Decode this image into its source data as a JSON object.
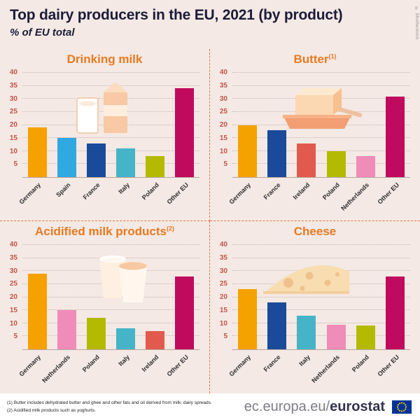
{
  "header": {
    "title": "Top dairy producers in the EU, 2021 (by product)",
    "subtitle": "% of EU total"
  },
  "credit": "© Shutterstock",
  "colors": {
    "Germany": "#f5a200",
    "Spain": "#2fa9e0",
    "France": "#1a4b9b",
    "Italy": "#46b4c8",
    "Poland": "#b4ba00",
    "Netherlands": "#f08cb8",
    "Ireland": "#e25a4e",
    "Other EU": "#c00a5e"
  },
  "chart_data": [
    {
      "type": "bar",
      "title": "Drinking milk",
      "title_sup": "",
      "icon": "milk-carton-and-glass",
      "categories": [
        "Germany",
        "Spain",
        "France",
        "Italy",
        "Poland",
        "Other EU"
      ],
      "values": [
        19,
        15,
        13,
        11,
        8,
        34
      ],
      "ylim": [
        0,
        40
      ],
      "yticks": [
        5,
        10,
        15,
        20,
        25,
        30,
        35,
        40
      ],
      "grid": "dotted horizontal",
      "legend": "none"
    },
    {
      "type": "bar",
      "title": "Butter",
      "title_sup": "(1)",
      "icon": "butter-dish-and-knife",
      "categories": [
        "Germany",
        "France",
        "Ireland",
        "Poland",
        "Netherlands",
        "Other EU"
      ],
      "values": [
        20,
        18,
        13,
        10,
        8,
        31
      ],
      "ylim": [
        0,
        40
      ],
      "yticks": [
        5,
        10,
        15,
        20,
        25,
        30,
        35,
        40
      ],
      "grid": "dotted horizontal",
      "legend": "none"
    },
    {
      "type": "bar",
      "title": "Acidified milk products",
      "title_sup": "(2)",
      "icon": "yogurt-cups",
      "categories": [
        "Germany",
        "Netherlands",
        "Poland",
        "Italy",
        "Ireland",
        "Other EU"
      ],
      "values": [
        29,
        15,
        12,
        8,
        7,
        28
      ],
      "ylim": [
        0,
        40
      ],
      "yticks": [
        5,
        10,
        15,
        20,
        25,
        30,
        35,
        40
      ],
      "grid": "dotted horizontal",
      "legend": "none"
    },
    {
      "type": "bar",
      "title": "Cheese",
      "title_sup": "",
      "icon": "cheese-wedge",
      "categories": [
        "Germany",
        "France",
        "Italy",
        "Netherlands",
        "Poland",
        "Other EU"
      ],
      "values": [
        23,
        18,
        13,
        9.5,
        9,
        28
      ],
      "ylim": [
        0,
        40
      ],
      "yticks": [
        5,
        10,
        15,
        20,
        25,
        30,
        35,
        40
      ],
      "grid": "dotted horizontal",
      "legend": "none"
    }
  ],
  "footnotes": [
    "(1) Butter includes dehydrated butter and ghee and other fats and oil derived from milk; dairy spreads.",
    "(2) Acidified milk products such as yoghurts."
  ],
  "footer": {
    "url_prefix": "ec.europa.eu/",
    "url_bold": "eurostat"
  }
}
